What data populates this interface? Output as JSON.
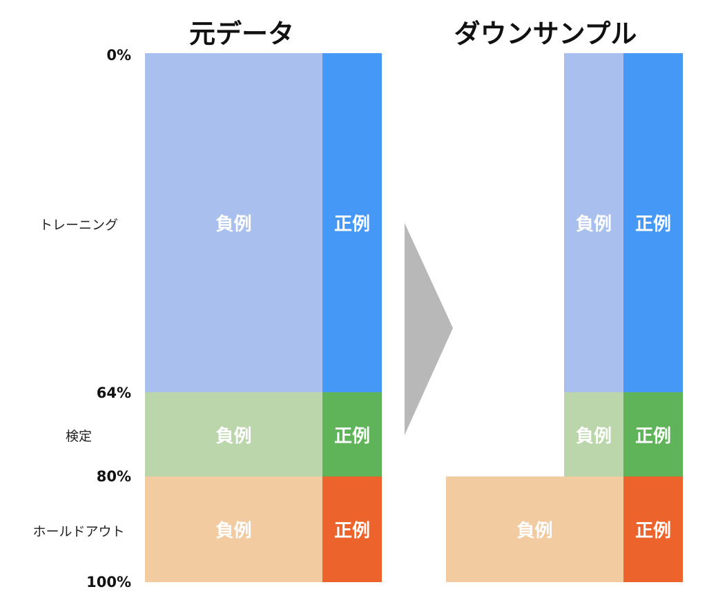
{
  "titles": {
    "original": "元データ",
    "downsampled": "ダウンサンプル"
  },
  "percent_labels": [
    "0%",
    "64%",
    "80%",
    "100%"
  ],
  "split_labels": {
    "training": "トレーニング",
    "validation": "検定",
    "holdout": "ホールドアウト"
  },
  "block_labels": {
    "negative": "負例",
    "positive": "正例"
  },
  "splits": {
    "training_end_percent": 64,
    "validation_end_percent": 80,
    "holdout_end_percent": 100
  },
  "colors": {
    "training_negative": "#a9c0ee",
    "training_positive": "#4598f5",
    "validation_negative": "#bbd6ab",
    "validation_positive": "#5fb358",
    "holdout_negative": "#f2cba0",
    "holdout_positive": "#ec632c",
    "arrow": "#b8b8b8"
  },
  "arrow_icon": "right-triangle-arrow"
}
